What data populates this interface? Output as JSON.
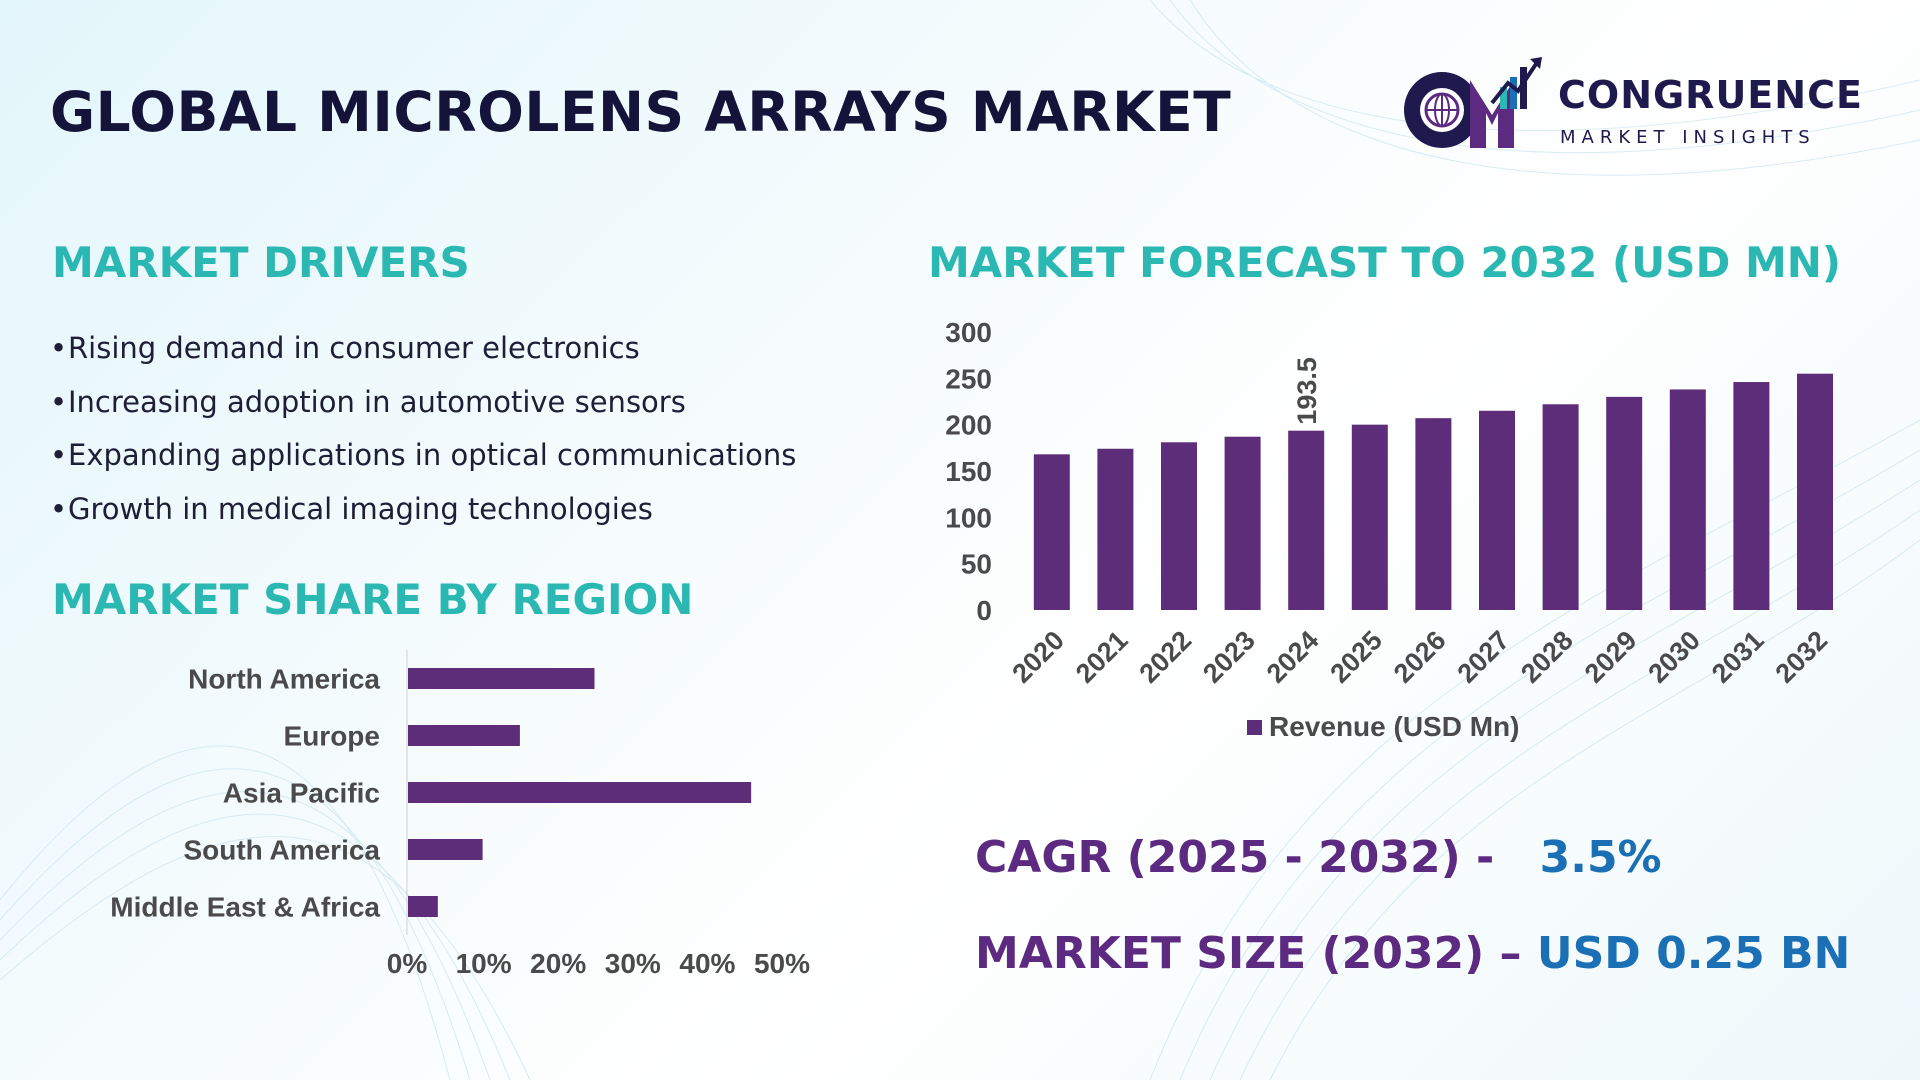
{
  "header": {
    "title": "GLOBAL MICROLENS ARRAYS MARKET",
    "logo": {
      "name": "CONGRUENCE",
      "tagline": "MARKET INSIGHTS",
      "mark_letters": "CM"
    }
  },
  "drivers": {
    "title": "MARKET DRIVERS",
    "items": [
      "Rising demand in consumer electronics",
      "Increasing adoption in automotive sensors",
      "Expanding applications in optical communications",
      "Growth in medical imaging technologies"
    ]
  },
  "region": {
    "title": "MARKET SHARE BY REGION"
  },
  "forecast": {
    "title": "MARKET FORECAST TO 2032 (USD MN)"
  },
  "stats": {
    "cagr_label": "CAGR (2025 - 2032) -",
    "cagr_value": "3.5%",
    "size_label": "MARKET SIZE (2032) –",
    "size_value": "USD 0.25 BN"
  },
  "colors": {
    "bar": "#5e2d7a",
    "accent_teal": "#2bb8b2",
    "accent_blue": "#1b6fb5",
    "accent_purple": "#5d2a82"
  },
  "chart_data": [
    {
      "type": "bar",
      "orientation": "horizontal",
      "categories": [
        "North America",
        "Europe",
        "Asia Pacific",
        "South America",
        "Middle East & Africa"
      ],
      "values": [
        25,
        15,
        46,
        10,
        4
      ],
      "xlim": [
        0,
        50
      ],
      "ticks": [
        "0%",
        "10%",
        "20%",
        "30%",
        "40%",
        "50%"
      ],
      "title": "",
      "xlabel": "",
      "ylabel": ""
    },
    {
      "type": "bar",
      "categories": [
        "2020",
        "2021",
        "2022",
        "2023",
        "2024",
        "2025",
        "2026",
        "2027",
        "2028",
        "2029",
        "2030",
        "2031",
        "2032"
      ],
      "series": [
        {
          "name": "Revenue (USD Mn)",
          "values": [
            168,
            174,
            181,
            187,
            193.5,
            200,
            207,
            215,
            222,
            230,
            238,
            246,
            255
          ]
        }
      ],
      "data_labels": [
        {
          "category": "2024",
          "text": "193.5"
        }
      ],
      "ylim": [
        0,
        300
      ],
      "yticks": [
        "0",
        "50",
        "100",
        "150",
        "200",
        "250",
        "300"
      ],
      "legend": "bottom",
      "title": "",
      "xlabel": "",
      "ylabel": ""
    }
  ]
}
